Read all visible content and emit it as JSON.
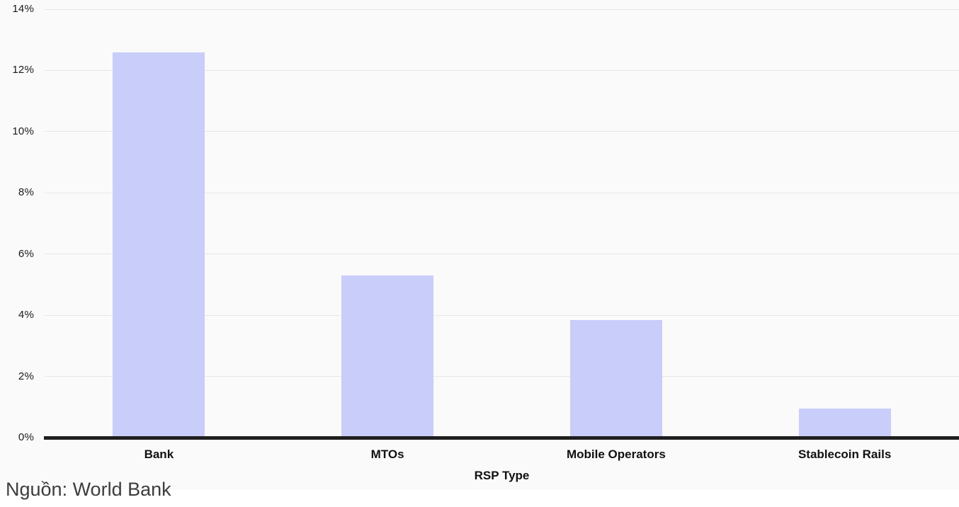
{
  "caption": "Nguồn: World Bank",
  "chart_data": {
    "type": "bar",
    "title": "",
    "xlabel": "RSP Type",
    "ylabel": "",
    "categories": [
      "Bank",
      "MTOs",
      "Mobile Operators",
      "Stablecoin Rails"
    ],
    "values": [
      12.6,
      5.3,
      3.85,
      0.95
    ],
    "value_unit": "%",
    "ylim": [
      0,
      14
    ],
    "ytick_step": 2,
    "ytick_labels": [
      "0%",
      "2%",
      "4%",
      "6%",
      "8%",
      "10%",
      "12%",
      "14%"
    ],
    "grid": "horizontal",
    "legend": "none",
    "colors": {
      "bar_fill": "#c9cdf9",
      "plot_background": "#fafafa",
      "page_background": "#ffffff",
      "gridline": "#e7e7e7",
      "axis_line": "#1f1f1f",
      "tick_text": "#1a1a1a",
      "label_text": "#111111",
      "caption_text": "#3d3d3d"
    }
  }
}
